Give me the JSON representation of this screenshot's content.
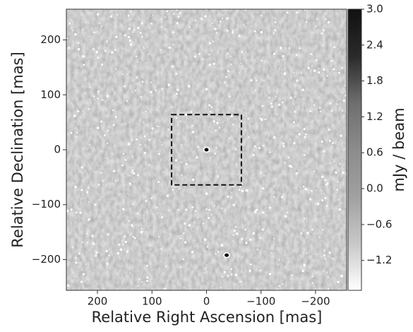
{
  "chart_data": {
    "type": "image",
    "xlabel": "Relative Right Ascension [mas]",
    "ylabel": "Relative Declination [mas]",
    "colorbar_label": "mJy / beam",
    "xlim": [
      257,
      -257
    ],
    "ylim": [
      -256,
      256
    ],
    "xticks": [
      200,
      100,
      0,
      {
        "value": -100,
        "label": "−100"
      },
      {
        "value": -200,
        "label": "−200"
      }
    ],
    "yticks": [
      {
        "value": -200,
        "label": "−200"
      },
      {
        "value": -100,
        "label": "−100"
      },
      0,
      100,
      200
    ],
    "clim": [
      -1.7,
      3.0
    ],
    "cticks": [
      {
        "value": -1.2,
        "label": "−1.2"
      },
      {
        "value": -0.6,
        "label": "−0.6"
      },
      {
        "value": 0,
        "label": "0.0"
      },
      {
        "value": 0.6,
        "label": "0.6"
      },
      {
        "value": 1.2,
        "label": "1.2"
      },
      {
        "value": 1.8,
        "label": "1.8"
      },
      {
        "value": 2.4,
        "label": "2.4"
      },
      {
        "value": 3.0,
        "label": "3.0"
      }
    ],
    "colormap": [
      "#ffffff",
      "#c8c8c8",
      "#a0a0a0",
      "#8c8c8c",
      "#6e6e6e",
      "#2a2a2a",
      "#111111"
    ],
    "box": {
      "x": [
        64,
        -64
      ],
      "y": [
        -64,
        64
      ]
    },
    "sources": {
      "x": [
        0,
        -37
      ],
      "y": [
        0,
        -192
      ]
    }
  }
}
